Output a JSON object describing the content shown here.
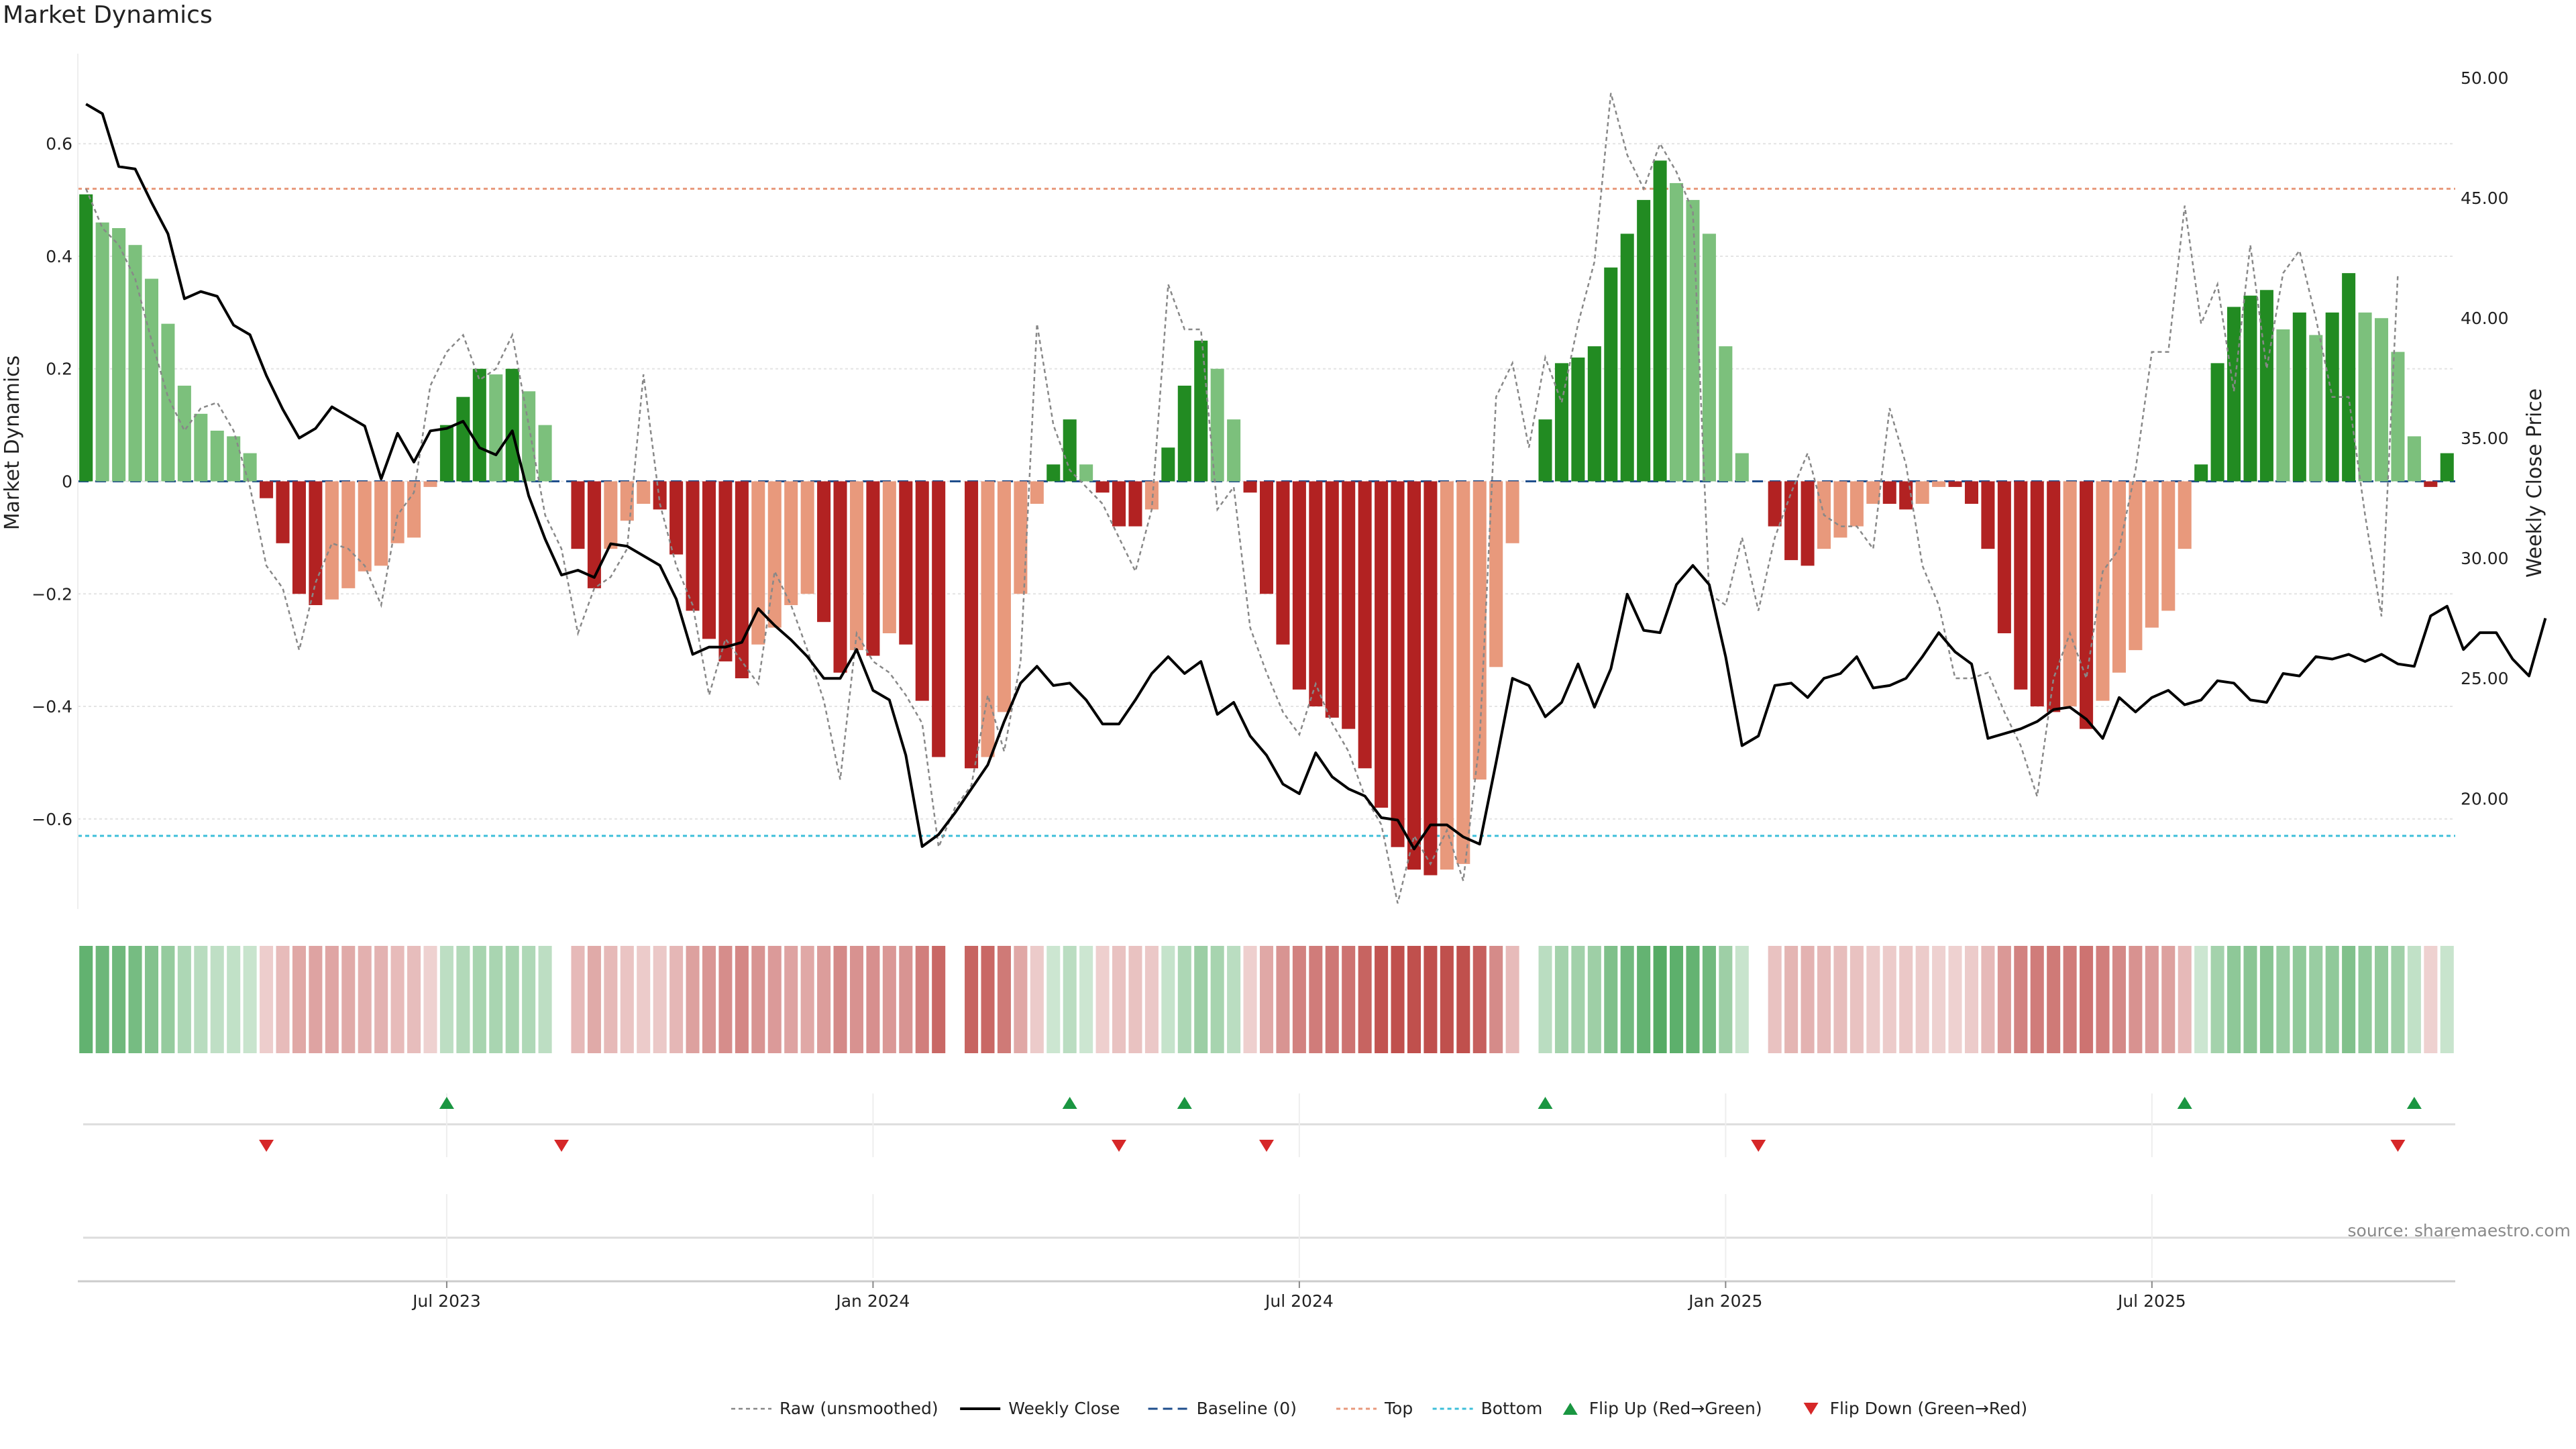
{
  "chart_data": {
    "type": "bar",
    "title": "Market Dynamics",
    "ylabel": "Market Dynamics",
    "y2label": "Weekly Close Price",
    "source": "source: sharemaestro.com",
    "ylim": [
      -0.76,
      0.76
    ],
    "y2lim": [
      15.4,
      51.0
    ],
    "yticks": [
      {
        "v": 0.6,
        "label": "0.6"
      },
      {
        "v": 0.4,
        "label": "0.4"
      },
      {
        "v": 0.2,
        "label": "0.2"
      },
      {
        "v": 0,
        "label": "0"
      },
      {
        "v": -0.2,
        "label": "−0.2"
      },
      {
        "v": -0.4,
        "label": "−0.4"
      },
      {
        "v": -0.6,
        "label": "−0.6"
      }
    ],
    "y2ticks": [
      {
        "v": 50,
        "label": "50.00"
      },
      {
        "v": 45,
        "label": "45.00"
      },
      {
        "v": 40,
        "label": "40.00"
      },
      {
        "v": 35,
        "label": "35.00"
      },
      {
        "v": 30,
        "label": "30.00"
      },
      {
        "v": 25,
        "label": "25.00"
      },
      {
        "v": 20,
        "label": "20.00"
      }
    ],
    "xticks": [
      {
        "i": 22,
        "label": "Jul 2023"
      },
      {
        "i": 48,
        "label": "Jan 2024"
      },
      {
        "i": 74,
        "label": "Jul 2024"
      },
      {
        "i": 100,
        "label": "Jan 2025"
      },
      {
        "i": 126,
        "label": "Jul 2025"
      }
    ],
    "top_threshold": 0.52,
    "bottom_threshold": -0.63,
    "colors": {
      "strong_up": "#228b22",
      "weak_up": "#7cc07c",
      "strong_down": "#b22222",
      "weak_down": "#e8997c",
      "close": "#000000",
      "raw": "#888888",
      "baseline": "#1f4e8c",
      "top": "#e8997c",
      "bottom": "#3dbfd9",
      "flip_up": "#1a9641",
      "flip_down": "#d62728"
    },
    "series": [
      {
        "name": "Market Dynamics",
        "values": [
          0.51,
          0.46,
          0.45,
          0.42,
          0.36,
          0.28,
          0.17,
          0.12,
          0.09,
          0.08,
          0.05,
          -0.03,
          -0.11,
          -0.2,
          -0.22,
          -0.21,
          -0.19,
          -0.16,
          -0.15,
          -0.11,
          -0.1,
          -0.01,
          0.1,
          0.15,
          0.2,
          0.19,
          0.2,
          0.16,
          0.1,
          null,
          -0.12,
          -0.19,
          -0.12,
          -0.07,
          -0.04,
          -0.05,
          -0.13,
          -0.23,
          -0.28,
          -0.32,
          -0.35,
          -0.29,
          -0.26,
          -0.22,
          -0.2,
          -0.25,
          -0.34,
          -0.3,
          -0.31,
          -0.27,
          -0.29,
          -0.39,
          -0.49,
          null,
          -0.51,
          -0.49,
          -0.41,
          -0.2,
          -0.04,
          0.03,
          0.11,
          0.03,
          -0.02,
          -0.08,
          -0.08,
          -0.05,
          0.06,
          0.17,
          0.25,
          0.2,
          0.11,
          -0.02,
          -0.2,
          -0.29,
          -0.37,
          -0.4,
          -0.42,
          -0.44,
          -0.51,
          -0.58,
          -0.65,
          -0.69,
          -0.7,
          -0.69,
          -0.68,
          -0.53,
          -0.33,
          -0.11,
          null,
          0.11,
          0.21,
          0.22,
          0.24,
          0.38,
          0.44,
          0.5,
          0.57,
          0.53,
          0.5,
          0.44,
          0.24,
          0.05,
          null,
          -0.08,
          -0.14,
          -0.15,
          -0.12,
          -0.1,
          -0.08,
          -0.04,
          -0.04,
          -0.05,
          -0.04,
          -0.01,
          -0.01,
          -0.04,
          -0.12,
          -0.27,
          -0.37,
          -0.4,
          -0.41,
          -0.4,
          -0.44,
          -0.39,
          -0.34,
          -0.3,
          -0.26,
          -0.23,
          -0.12,
          0.03,
          0.21,
          0.31,
          0.33,
          0.34,
          0.27,
          0.3,
          0.26,
          0.3,
          0.37,
          0.3,
          0.29,
          0.23,
          0.08,
          -0.01,
          0.05
        ]
      },
      {
        "name": "Raw (unsmoothed)",
        "values": [
          0.52,
          0.45,
          0.42,
          0.36,
          0.25,
          0.15,
          0.09,
          0.13,
          0.14,
          0.09,
          -0.01,
          -0.15,
          -0.19,
          -0.3,
          -0.18,
          -0.11,
          -0.12,
          -0.15,
          -0.22,
          -0.06,
          -0.02,
          0.17,
          0.23,
          0.26,
          0.18,
          0.2,
          0.26,
          0.1,
          -0.06,
          -0.12,
          -0.27,
          -0.19,
          -0.17,
          -0.12,
          0.19,
          -0.04,
          -0.15,
          -0.22,
          -0.38,
          -0.28,
          -0.32,
          -0.36,
          -0.16,
          -0.22,
          -0.3,
          -0.39,
          -0.53,
          -0.27,
          -0.32,
          -0.34,
          -0.38,
          -0.43,
          -0.65,
          -0.58,
          -0.54,
          -0.38,
          -0.48,
          -0.32,
          0.28,
          0.1,
          0.02,
          -0.01,
          -0.04,
          -0.1,
          -0.16,
          -0.05,
          0.35,
          0.27,
          0.27,
          -0.05,
          -0.01,
          -0.26,
          -0.34,
          -0.41,
          -0.45,
          -0.36,
          -0.43,
          -0.48,
          -0.56,
          -0.61,
          -0.75,
          -0.63,
          -0.68,
          -0.62,
          -0.71,
          -0.46,
          0.15,
          0.21,
          0.06,
          0.22,
          0.14,
          0.28,
          0.39,
          0.69,
          0.58,
          0.52,
          0.6,
          0.55,
          0.48,
          -0.2,
          -0.22,
          -0.1,
          -0.23,
          -0.1,
          -0.02,
          0.05,
          -0.06,
          -0.08,
          -0.08,
          -0.12,
          0.13,
          0.03,
          -0.15,
          -0.22,
          -0.35,
          -0.35,
          -0.34,
          -0.41,
          -0.47,
          -0.56,
          -0.35,
          -0.27,
          -0.35,
          -0.16,
          -0.12,
          0.02,
          0.23,
          0.23,
          0.49,
          0.28,
          0.35,
          0.16,
          0.42,
          0.2,
          0.37,
          0.41,
          0.29,
          0.15,
          0.15,
          -0.06,
          -0.24,
          0.37
        ]
      },
      {
        "name": "Weekly Close",
        "values": [
          48.9,
          48.5,
          46.3,
          46.2,
          44.8,
          43.5,
          40.8,
          41.1,
          40.9,
          39.7,
          39.3,
          37.6,
          36.2,
          35.0,
          35.4,
          36.3,
          35.9,
          35.5,
          33.3,
          35.2,
          34.0,
          35.3,
          35.4,
          35.7,
          34.6,
          34.3,
          35.3,
          32.6,
          30.8,
          29.3,
          29.5,
          29.2,
          30.6,
          30.5,
          30.1,
          29.7,
          28.3,
          26.0,
          26.3,
          26.3,
          26.5,
          27.9,
          27.2,
          26.6,
          25.9,
          25.0,
          25.0,
          26.2,
          24.5,
          24.1,
          21.8,
          18.0,
          18.5,
          19.4,
          20.4,
          21.4,
          23.2,
          24.8,
          25.5,
          24.7,
          24.8,
          24.1,
          23.1,
          23.1,
          24.1,
          25.2,
          25.9,
          25.2,
          25.7,
          23.5,
          24.0,
          22.6,
          21.8,
          20.6,
          20.2,
          21.9,
          20.9,
          20.4,
          20.1,
          19.2,
          19.1,
          17.9,
          18.9,
          18.9,
          18.4,
          18.1,
          21.5,
          25.0,
          24.7,
          23.4,
          24.0,
          25.6,
          23.8,
          25.4,
          28.5,
          27.0,
          26.9,
          28.9,
          29.7,
          28.9,
          25.9,
          22.2,
          22.6,
          24.7,
          24.8,
          24.2,
          25.0,
          25.2,
          25.9,
          24.6,
          24.7,
          25.0,
          25.9,
          26.9,
          26.1,
          25.6,
          22.5,
          22.7,
          22.9,
          23.2,
          23.7,
          23.8,
          23.3,
          22.5,
          24.2,
          23.6,
          24.2,
          24.5,
          23.9,
          24.1,
          24.9,
          24.8,
          24.1,
          24.0,
          25.2,
          25.1,
          25.9,
          25.8,
          26.0,
          25.7,
          26.0,
          25.6,
          25.5,
          27.6,
          28.0,
          26.2,
          26.9,
          26.9,
          25.8,
          25.1,
          27.5
        ]
      },
      {
        "name": "Baseline (0)",
        "values": [
          0
        ]
      },
      {
        "name": "Top",
        "values": [
          0.52
        ]
      },
      {
        "name": "Bottom",
        "values": [
          -0.63
        ]
      }
    ],
    "flip_up_indices": [
      22,
      60,
      67,
      89,
      128,
      142
    ],
    "flip_down_indices": [
      11,
      29,
      63,
      72,
      102,
      141
    ],
    "legend": [
      {
        "key": "raw",
        "label": "Raw (unsmoothed)"
      },
      {
        "key": "close",
        "label": "Weekly Close"
      },
      {
        "key": "baseline",
        "label": "Baseline (0)"
      },
      {
        "key": "top",
        "label": "Top"
      },
      {
        "key": "bottom",
        "label": "Bottom"
      },
      {
        "key": "flip_up",
        "label": "Flip Up (Red→Green)"
      },
      {
        "key": "flip_down",
        "label": "Flip Down (Green→Red)"
      }
    ]
  }
}
